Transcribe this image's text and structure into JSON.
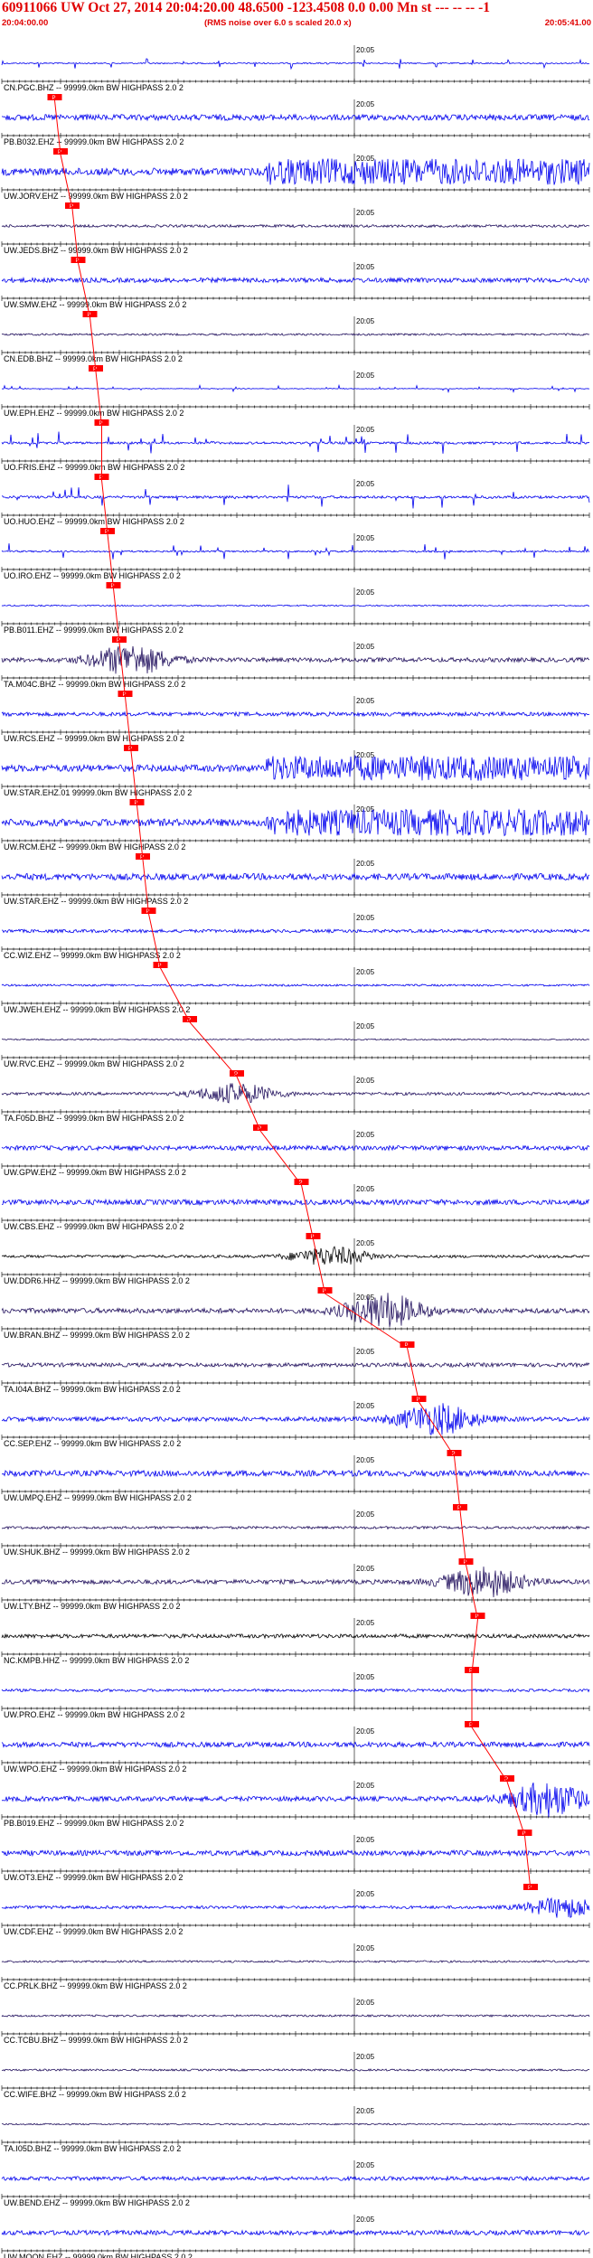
{
  "header": {
    "title": "60911066 UW Oct 27, 2014 20:04:20.00   48.6500 -123.4508  0.0 0.00 Mn st --- -- --   -1",
    "start_time": "20:04:00.00",
    "rms_note": "(RMS noise over 6.0 s scaled 20.0 x)",
    "end_time": "20:05:41.00"
  },
  "chart_data": {
    "type": "line",
    "description_of_axis": "",
    "minute_label": "20:05",
    "pick_label": "P",
    "colors": {
      "trace_blue": "#0000ee",
      "trace_dark": "#22115e",
      "trace_black": "#000000",
      "pick_red": "#ff0000",
      "axis": "#000000"
    },
    "traces": [
      {
        "label": "CN.PGC.BHZ -- 99999.0km BW  HIGHPASS  2.0  2",
        "color": "#0000ee",
        "amp": 0.35,
        "style": "spikes"
      },
      {
        "label": "PB.B032.EHZ -- 99999.0km BW  HIGHPASS  2.0  2",
        "color": "#0000ee",
        "amp": 0.45,
        "style": "noise",
        "pick": 0.09
      },
      {
        "label": "UW.JORV.EHZ -- 99999.0km BW  HIGHPASS  2.0  2",
        "color": "#0000ee",
        "amp": 0.9,
        "style": "burst_late",
        "pick": 0.1
      },
      {
        "label": "UW.JEDS.BHZ -- 99999.0km BW  HIGHPASS  2.0  2",
        "color": "#22115e",
        "amp": 0.2,
        "style": "noise",
        "pick": 0.12
      },
      {
        "label": "UW.SMW.EHZ -- 99999.0km BW  HIGHPASS  2.0  2",
        "color": "#0000ee",
        "amp": 0.35,
        "style": "noise",
        "pick": 0.13
      },
      {
        "label": "CN.EDB.BHZ -- 99999.0km BW  HIGHPASS  2.0  2",
        "color": "#22115e",
        "amp": 0.15,
        "style": "noise",
        "pick": 0.15
      },
      {
        "label": "UW.EPH.EHZ -- 99999.0km BW  HIGHPASS  2.0  2",
        "color": "#0000ee",
        "amp": 0.2,
        "style": "sparse",
        "pick": 0.16
      },
      {
        "label": "UO.FRIS.EHZ -- 99999.0km BW  HIGHPASS  2.0  2",
        "color": "#0000ee",
        "amp": 0.7,
        "style": "sparse",
        "pick": 0.17
      },
      {
        "label": "UO.HUO.EHZ -- 99999.0km BW  HIGHPASS  2.0  2",
        "color": "#0000ee",
        "amp": 0.8,
        "style": "sparse",
        "pick": 0.17
      },
      {
        "label": "UO.IRO.EHZ -- 99999.0km BW  HIGHPASS  2.0  2",
        "color": "#0000ee",
        "amp": 0.5,
        "style": "sparse",
        "pick": 0.18
      },
      {
        "label": "PB.B011.EHZ -- 99999.0km BW  HIGHPASS  2.0  2",
        "color": "#0000ee",
        "amp": 0.1,
        "style": "noise",
        "pick": 0.19
      },
      {
        "label": "TA.M04C.BHZ -- 99999.0km BW  HIGHPASS  2.0  2",
        "color": "#22115e",
        "amp": 0.9,
        "style": "burst",
        "burst": 0.22,
        "pick": 0.2
      },
      {
        "label": "UW.RCS.EHZ -- 99999.0km BW  HIGHPASS  2.0  2",
        "color": "#0000ee",
        "amp": 0.3,
        "style": "noise",
        "pick": 0.21
      },
      {
        "label": "UW.STAR.EHZ.01 99999.0km BW  HIGHPASS  2.0  2",
        "color": "#0000ee",
        "amp": 0.85,
        "style": "burst_late",
        "pick": 0.22
      },
      {
        "label": "UW.RCM.EHZ -- 99999.0km BW  HIGHPASS  2.0  2",
        "color": "#0000ee",
        "amp": 0.9,
        "style": "burst_late",
        "pick": 0.23
      },
      {
        "label": "UW.STAR.EHZ -- 99999.0km BW  HIGHPASS  2.0  2",
        "color": "#0000ee",
        "amp": 0.5,
        "style": "noise",
        "pick": 0.24
      },
      {
        "label": "CC.WIZ.EHZ -- 99999.0km BW  HIGHPASS  2.0  2",
        "color": "#0000ee",
        "amp": 0.25,
        "style": "noise",
        "pick": 0.25
      },
      {
        "label": "UW.JWEH.EHZ -- 99999.0km BW  HIGHPASS  2.0  2",
        "color": "#0000ee",
        "amp": 0.15,
        "style": "noise",
        "pick": 0.27
      },
      {
        "label": "UW.RVC.EHZ -- 99999.0km BW  HIGHPASS  2.0  2",
        "color": "#22115e",
        "amp": 0.1,
        "style": "noise",
        "pick": 0.32
      },
      {
        "label": "TA.F05D.BHZ -- 99999.0km BW  HIGHPASS  2.0  2",
        "color": "#22115e",
        "amp": 0.6,
        "style": "burst",
        "burst": 0.4,
        "pick": 0.4
      },
      {
        "label": "UW.GPW.EHZ -- 99999.0km BW  HIGHPASS  2.0  2",
        "color": "#0000ee",
        "amp": 0.35,
        "style": "noise",
        "pick": 0.44
      },
      {
        "label": "UW.CBS.EHZ -- 99999.0km BW  HIGHPASS  2.0  2",
        "color": "#0000ee",
        "amp": 0.4,
        "style": "noise",
        "pick": 0.51
      },
      {
        "label": "UW.DDR6.HHZ -- 99999.0km BW  HIGHPASS  2.0  2",
        "color": "#000000",
        "amp": 0.55,
        "style": "burst",
        "burst": 0.56,
        "pick": 0.53
      },
      {
        "label": "UW.BRAN.BHZ -- 99999.0km BW  HIGHPASS  2.0  2",
        "color": "#22115e",
        "amp": 1.0,
        "style": "burst",
        "burst": 0.65,
        "pick": 0.55
      },
      {
        "label": "TA.I04A.BHZ -- 99999.0km BW  HIGHPASS  2.0  2",
        "color": "#22115e",
        "amp": 0.3,
        "style": "noise",
        "pick": 0.69
      },
      {
        "label": "CC.SEP.EHZ -- 99999.0km BW  HIGHPASS  2.0  2",
        "color": "#0000ee",
        "amp": 0.9,
        "style": "burst",
        "burst": 0.74,
        "pick": 0.71
      },
      {
        "label": "UW.UMPQ.EHZ -- 99999.0km BW  HIGHPASS  2.0  2",
        "color": "#0000ee",
        "amp": 0.45,
        "style": "noise",
        "pick": 0.77
      },
      {
        "label": "UW.SHUK.BHZ -- 99999.0km BW  HIGHPASS  2.0  2",
        "color": "#22115e",
        "amp": 0.2,
        "style": "noise",
        "pick": 0.78
      },
      {
        "label": "UW.LTY.BHZ -- 99999.0km BW  HIGHPASS  2.0  2",
        "color": "#22115e",
        "amp": 0.9,
        "style": "burst",
        "burst": 0.82,
        "pick": 0.79
      },
      {
        "label": "NC.KMPB.HHZ -- 99999.0km BW  HIGHPASS  2.0  2",
        "color": "#000000",
        "amp": 0.3,
        "style": "noise",
        "pick": 0.81
      },
      {
        "label": "UW.PRO.EHZ -- 99999.0km BW  HIGHPASS  2.0  2",
        "color": "#0000ee",
        "amp": 0.2,
        "style": "noise",
        "pick": 0.8
      },
      {
        "label": "UW.WPO.EHZ -- 99999.0km BW  HIGHPASS  2.0  2",
        "color": "#0000ee",
        "amp": 0.4,
        "style": "noise",
        "pick": 0.8
      },
      {
        "label": "PB.B019.EHZ -- 99999.0km BW  HIGHPASS  2.0  2",
        "color": "#0000ee",
        "amp": 1.0,
        "style": "burst",
        "burst": 0.93,
        "pick": 0.86
      },
      {
        "label": "UW.OT3.EHZ -- 99999.0km BW  HIGHPASS  2.0  2",
        "color": "#0000ee",
        "amp": 0.4,
        "style": "noise",
        "pick": 0.89
      },
      {
        "label": "UW.CDF.EHZ -- 99999.0km BW  HIGHPASS  2.0  2",
        "color": "#0000ee",
        "amp": 0.6,
        "style": "burst",
        "burst": 0.96,
        "pick": 0.9
      },
      {
        "label": "CC.PRLK.BHZ -- 99999.0km BW  HIGHPASS  2.0  2",
        "color": "#22115e",
        "amp": 0.15,
        "style": "noise"
      },
      {
        "label": "CC.TCBU.BHZ -- 99999.0km BW  HIGHPASS  2.0  2",
        "color": "#22115e",
        "amp": 0.15,
        "style": "noise"
      },
      {
        "label": "CC.WIFE.BHZ -- 99999.0km BW  HIGHPASS  2.0  2",
        "color": "#22115e",
        "amp": 0.15,
        "style": "noise"
      },
      {
        "label": "TA.I05D.BHZ -- 99999.0km BW  HIGHPASS  2.0  2",
        "color": "#22115e",
        "amp": 0.12,
        "style": "noise"
      },
      {
        "label": "UW.BEND.EHZ -- 99999.0km BW  HIGHPASS  2.0  2",
        "color": "#0000ee",
        "amp": 0.3,
        "style": "noise"
      },
      {
        "label": "UW.MOON.EHZ -- 99999.0km BW  HIGHPASS  2.0  2",
        "color": "#0000ee",
        "amp": 0.35,
        "style": "noise"
      }
    ]
  }
}
